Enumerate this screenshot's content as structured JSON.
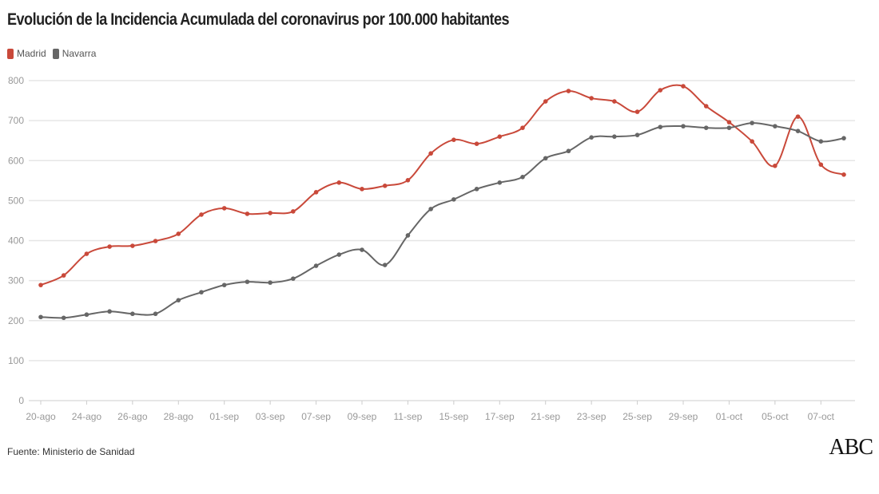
{
  "chart_data": {
    "type": "line",
    "title": "Evolución de la Incidencia Acumulada del coronavirus por 100.000 habitantes",
    "xlabel": "",
    "ylabel": "",
    "ylim": [
      0,
      800
    ],
    "yticks": [
      0,
      100,
      200,
      300,
      400,
      500,
      600,
      700,
      800
    ],
    "grid": true,
    "legend": "top-left",
    "categories": [
      "20-ago",
      "",
      "24-ago",
      "",
      "26-ago",
      "",
      "28-ago",
      "",
      "01-sep",
      "",
      "03-sep",
      "",
      "07-sep",
      "",
      "09-sep",
      "",
      "11-sep",
      "",
      "15-sep",
      "",
      "17-sep",
      "",
      "21-sep",
      "",
      "23-sep",
      "",
      "25-sep",
      "",
      "29-sep",
      "",
      "01-oct",
      "",
      "05-oct",
      "",
      "07-oct",
      ""
    ],
    "series": [
      {
        "name": "Madrid",
        "color": "#c9493a",
        "values": [
          289,
          313,
          367,
          385,
          387,
          399,
          417,
          465,
          481,
          467,
          469,
          473,
          521,
          545,
          529,
          537,
          551,
          618,
          652,
          642,
          660,
          682,
          748,
          774,
          756,
          748,
          722,
          776,
          786,
          736,
          696,
          648,
          587,
          710,
          590,
          565
        ]
      },
      {
        "name": "Navarra",
        "color": "#666666",
        "values": [
          209,
          207,
          215,
          223,
          217,
          217,
          251,
          271,
          289,
          297,
          295,
          305,
          337,
          365,
          377,
          339,
          413,
          479,
          503,
          529,
          545,
          559,
          606,
          624,
          658,
          660,
          664,
          684,
          686,
          682,
          682,
          694,
          686,
          674,
          648,
          656
        ]
      }
    ]
  },
  "source": "Fuente: Ministerio de Sanidad",
  "logo": "ABC"
}
